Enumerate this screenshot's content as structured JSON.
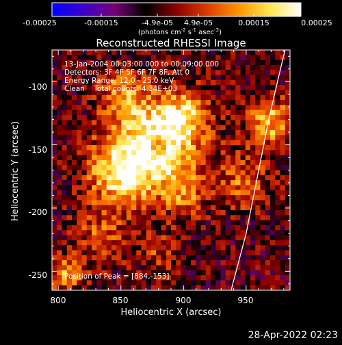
{
  "colorbar": {
    "ticks": [
      "-0.00025",
      "-0.00015",
      "-4.9e-05",
      "4.9e-05",
      "0.00015",
      "0.00025"
    ],
    "units_prefix": "(photons cm",
    "units_exp1": "-2",
    "units_mid1": " s",
    "units_exp2": "-1",
    "units_mid2": " asec",
    "units_exp3": "-2",
    "units_suffix": ")",
    "stops": [
      "#0000ff",
      "#3c00c8",
      "#780078",
      "#000000",
      "#8c0000",
      "#e03c00",
      "#ff9600",
      "#ffe650",
      "#ffffff"
    ]
  },
  "title": "Reconstructed RHESSI Image",
  "info_lines": [
    "13-Jan-2004 00:03:00.000 to 00:09:00.000",
    "Detectors: 3F 4F 5F 6F 7F 8F, Att 0",
    "Energy Range: 12.0 - 25.0 keV",
    "Clean    Total counts: 4.34E+03"
  ],
  "peak_label": "Position of Peak = [884,-153]",
  "x_axis": {
    "label": "Heliocentric X (arcsec)",
    "ticks": [
      "800",
      "850",
      "900",
      "950"
    ],
    "tick_values": [
      800,
      850,
      900,
      950
    ],
    "range": [
      795,
      985
    ]
  },
  "y_axis": {
    "label": "Heliocentric Y (arcsec)",
    "ticks": [
      "-100",
      "-150",
      "-200",
      "-250"
    ],
    "tick_values": [
      -100,
      -150,
      -200,
      -250
    ],
    "range": [
      -265,
      -75
    ]
  },
  "limb_arc": {
    "points": [
      [
        938,
        -265
      ],
      [
        950,
        -220
      ],
      [
        960,
        -170
      ],
      [
        968,
        -130
      ],
      [
        975,
        -100
      ],
      [
        981,
        -75
      ]
    ]
  },
  "timestamp": "28-Apr-2022 02:23"
}
